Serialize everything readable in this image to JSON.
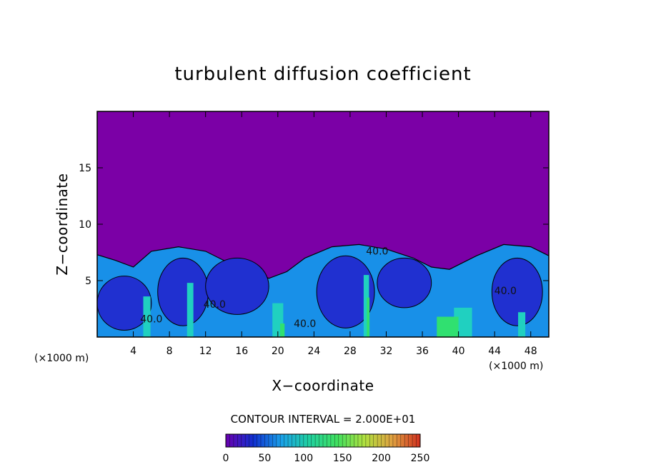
{
  "chart_data": {
    "type": "heatmap",
    "title": "turbulent diffusion coefficient",
    "xlabel": "X−coordinate",
    "ylabel": "Z−coordinate",
    "x_unit_left": "(×1000 m)",
    "x_unit_right": "(×1000 m)",
    "xlim": [
      0,
      50
    ],
    "ylim": [
      0,
      20
    ],
    "x_ticks": [
      4,
      8,
      12,
      16,
      20,
      24,
      28,
      32,
      36,
      40,
      44,
      48
    ],
    "y_ticks": [
      5,
      10,
      15
    ],
    "contour_interval_text": "CONTOUR INTERVAL = 2.000E+01",
    "contour_labels": [
      {
        "text": "40.0",
        "x": 13.0,
        "z": 2.6
      },
      {
        "text": "40.0",
        "x": 6.0,
        "z": 1.3
      },
      {
        "text": "40.0",
        "x": 23.0,
        "z": 0.9
      },
      {
        "text": "40.0",
        "x": 31.0,
        "z": 7.3
      },
      {
        "text": "40.0",
        "x": 45.2,
        "z": 3.8
      }
    ],
    "colorbar": {
      "min": 0,
      "max": 250,
      "tick_values": [
        0,
        50,
        100,
        150,
        200,
        250
      ],
      "tick_labels": [
        "0",
        "50",
        "100",
        "150",
        "200",
        "250"
      ],
      "colors": [
        "#6a00b0",
        "#1030d0",
        "#1aa0e8",
        "#20d0a0",
        "#40e060",
        "#b0e040",
        "#e0a040",
        "#d03020"
      ]
    },
    "background_value_color": "#7b00a6",
    "domain_colors": {
      "low": "#2030d0",
      "mid": "#1890e8",
      "high": "#20d0c0",
      "peak": "#30e070"
    }
  }
}
